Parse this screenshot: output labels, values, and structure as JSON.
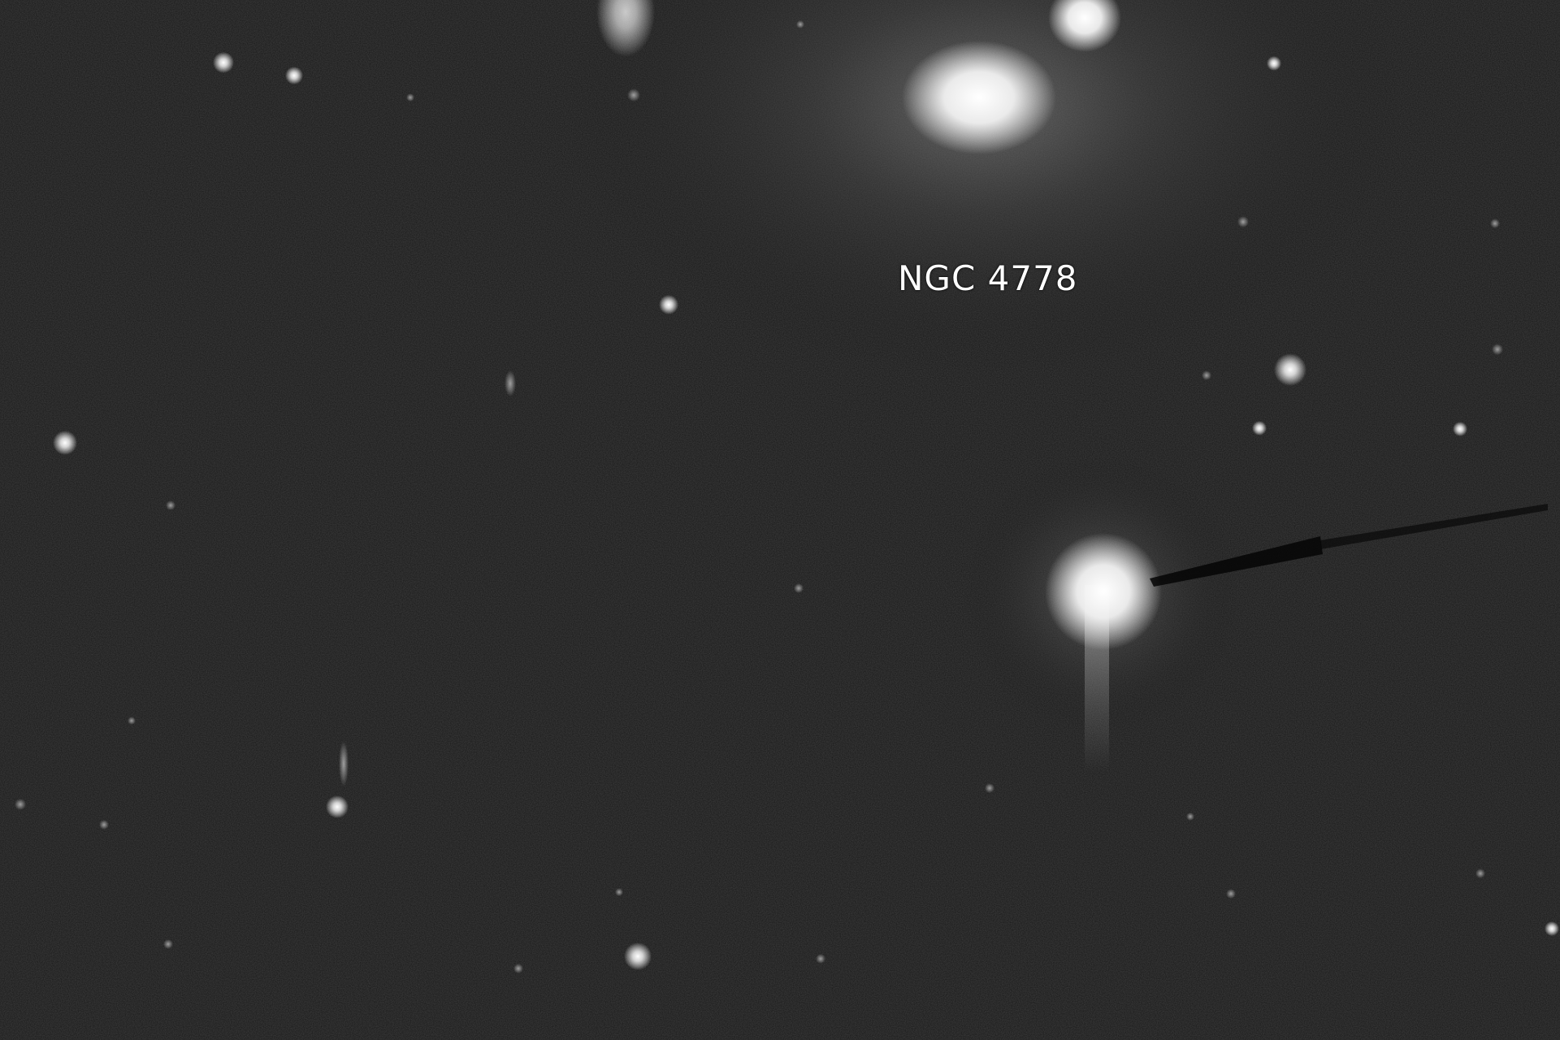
{
  "image": {
    "kind": "astronomical photograph",
    "palette": {
      "background": "#161616",
      "star": "#ffffff",
      "label": "#ffffff"
    }
  },
  "labels": {
    "galaxy_group": "NGC 4778"
  }
}
